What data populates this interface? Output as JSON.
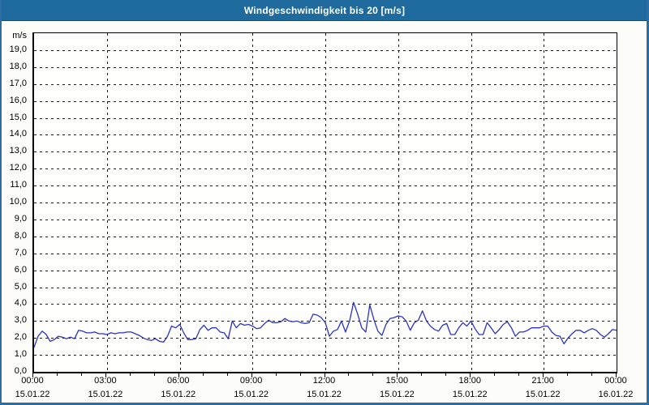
{
  "window": {
    "title": "Windgeschwindigkeit bis 20 [m/s]"
  },
  "colors": {
    "title_bar": "#1e6a9c",
    "title_bar_edge": "#134f79",
    "title_text": "#ffffff",
    "frame": "#2d6da3",
    "chart_background": "#fcfdf9",
    "plot_background": "#fefefc",
    "axis": "#000000",
    "grid": "#1b1b1b",
    "line": "#2a35c0"
  },
  "chart_data": {
    "type": "line",
    "title": "Windgeschwindigkeit bis 20 [m/s]",
    "ylabel": "m/s",
    "xlabel": "",
    "ylim": [
      0,
      20
    ],
    "y_tick_step": 1.0,
    "y_tick_values": [
      0,
      1,
      2,
      3,
      4,
      5,
      6,
      7,
      8,
      9,
      10,
      11,
      12,
      13,
      14,
      15,
      16,
      17,
      18,
      19
    ],
    "y_tick_labels": [
      "0,0",
      "1,0",
      "2,0",
      "3,0",
      "4,0",
      "5,0",
      "6,0",
      "7,0",
      "8,0",
      "9,0",
      "10,0",
      "11,0",
      "12,0",
      "13,0",
      "14,0",
      "15,0",
      "16,0",
      "17,0",
      "18,0",
      "19,0"
    ],
    "grid": "dashed",
    "x_range_hours": 24,
    "minor_tick_interval_hours": 1,
    "x_ticks": [
      {
        "hour": 0,
        "time": "00:00",
        "date": "15.01.22"
      },
      {
        "hour": 3,
        "time": "03:00",
        "date": "15.01.22"
      },
      {
        "hour": 6,
        "time": "06:00",
        "date": "15.01.22"
      },
      {
        "hour": 9,
        "time": "09:00",
        "date": "15.01.22"
      },
      {
        "hour": 12,
        "time": "12:00",
        "date": "15.01.22"
      },
      {
        "hour": 15,
        "time": "15:00",
        "date": "15.01.22"
      },
      {
        "hour": 18,
        "time": "18:00",
        "date": "15.01.22"
      },
      {
        "hour": 21,
        "time": "21:00",
        "date": "15.01.22"
      },
      {
        "hour": 24,
        "time": "00:00",
        "date": "16.01.22"
      }
    ],
    "series": [
      {
        "name": "Windgeschwindigkeit",
        "unit": "m/s",
        "color": "#2a35c0",
        "start": "15.01.22 00:00",
        "interval_minutes": 10,
        "values": [
          1.45,
          2.1,
          2.4,
          2.2,
          1.8,
          1.9,
          2.1,
          2.05,
          1.95,
          2.05,
          1.95,
          2.45,
          2.4,
          2.3,
          2.3,
          2.35,
          2.25,
          2.25,
          2.2,
          2.3,
          2.25,
          2.3,
          2.3,
          2.35,
          2.35,
          2.25,
          2.15,
          2.0,
          1.9,
          1.85,
          1.95,
          1.8,
          1.75,
          2.1,
          2.7,
          2.6,
          2.8,
          2.3,
          1.9,
          1.9,
          1.95,
          2.5,
          2.75,
          2.45,
          2.6,
          2.6,
          2.35,
          2.3,
          1.95,
          3.0,
          2.6,
          2.85,
          2.75,
          2.8,
          2.7,
          2.55,
          2.6,
          2.85,
          3.05,
          2.9,
          2.9,
          2.95,
          3.15,
          3.0,
          2.95,
          3.0,
          2.9,
          2.85,
          2.9,
          3.4,
          3.35,
          3.2,
          2.9,
          2.1,
          2.4,
          2.5,
          3.0,
          2.35,
          3.0,
          4.1,
          3.4,
          2.6,
          2.35,
          3.95,
          3.1,
          2.4,
          2.15,
          2.8,
          3.15,
          3.2,
          3.3,
          3.25,
          3.0,
          2.45,
          2.9,
          3.05,
          3.6,
          3.0,
          2.7,
          2.5,
          2.4,
          2.75,
          2.85,
          2.2,
          2.2,
          2.6,
          2.9,
          2.7,
          3.0,
          2.55,
          2.2,
          2.2,
          2.9,
          2.6,
          2.25,
          2.5,
          2.8,
          2.95,
          2.6,
          2.1,
          2.35,
          2.35,
          2.45,
          2.6,
          2.6,
          2.6,
          2.7,
          2.7,
          2.35,
          2.15,
          2.1,
          1.65,
          2.0,
          2.25,
          2.45,
          2.45,
          2.3,
          2.45,
          2.55,
          2.45,
          2.2,
          2.05,
          2.25,
          2.5,
          2.45
        ]
      }
    ]
  }
}
